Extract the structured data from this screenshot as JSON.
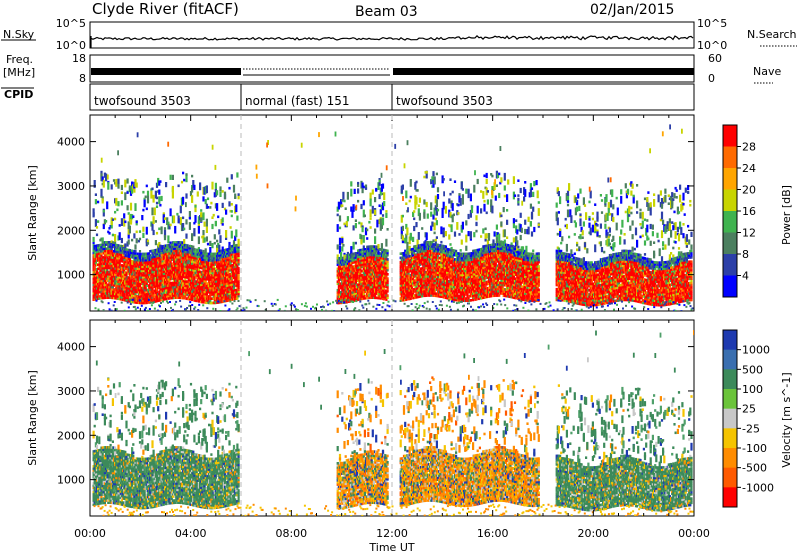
{
  "header": {
    "title": "Clyde River (fitACF)",
    "beam": "Beam 03",
    "date": "02/Jan/2015"
  },
  "strips": {
    "nsky": {
      "label": "N.Sky",
      "ticks": [
        "10^5",
        "10^0"
      ]
    },
    "nsearch": {
      "label": "N.Search",
      "ticks": [
        "10^5",
        "10^0"
      ]
    },
    "freq": {
      "label_line1": "Freq.",
      "label_line2": "[MHz]",
      "ticks": [
        "18",
        "8"
      ]
    },
    "nave": {
      "label": "Nave",
      "ticks": [
        "60",
        "0"
      ]
    },
    "cpid": {
      "label": "CPID",
      "segments": [
        {
          "name": "twofsound 3503",
          "start_hour": 0,
          "end_hour": 6
        },
        {
          "name": "normal (fast) 151",
          "start_hour": 6,
          "end_hour": 12
        },
        {
          "name": "twofsound 3503",
          "start_hour": 12,
          "end_hour": 24
        }
      ]
    }
  },
  "axes": {
    "ylabel": "Slant Range [km]",
    "xlabel": "Time UT",
    "x_ticks": [
      "00:00",
      "04:00",
      "08:00",
      "12:00",
      "16:00",
      "20:00",
      "00:00"
    ],
    "y_ticks": [
      "1000",
      "2000",
      "3000",
      "4000"
    ]
  },
  "chart_data": [
    {
      "type": "heatmap",
      "panel": "power",
      "xlabel": "Time UT",
      "ylabel": "Slant Range [km]",
      "xlim": [
        0,
        24
      ],
      "ylim": [
        180,
        4600
      ],
      "colorbar": {
        "label": "Power [dB]",
        "ticks": [
          "28",
          "24",
          "20",
          "16",
          "12",
          "8",
          "4"
        ],
        "colors": [
          "#ff0000",
          "#ff6a00",
          "#ffa500",
          "#c8d400",
          "#3fb34f",
          "#4b7f5f",
          "#2c3fa8",
          "#0000ff"
        ]
      },
      "scatter_regions": [
        {
          "t_start": 0.1,
          "t_end": 5.9,
          "r_min": 450,
          "r_max": 1900,
          "dominant": "red"
        },
        {
          "t_start": 9.8,
          "t_end": 11.8,
          "r_min": 450,
          "r_max": 1800,
          "dominant": "red"
        },
        {
          "t_start": 12.3,
          "t_end": 17.8,
          "r_min": 500,
          "r_max": 1900,
          "dominant": "red"
        },
        {
          "t_start": 18.5,
          "t_end": 23.9,
          "r_min": 400,
          "r_max": 1700,
          "dominant": "red"
        }
      ]
    },
    {
      "type": "heatmap",
      "panel": "velocity",
      "xlabel": "Time UT",
      "ylabel": "Slant Range [km]",
      "xlim": [
        0,
        24
      ],
      "ylim": [
        180,
        4600
      ],
      "colorbar": {
        "label": "Velocity [m s^-1]",
        "ticks": [
          "1000",
          "500",
          "100",
          "25",
          "-25",
          "-100",
          "-500",
          "-1000"
        ],
        "colors": [
          "#1e3ab0",
          "#3a6fb0",
          "#3c8a5a",
          "#6bc43a",
          "#c8c8c8",
          "#f5c400",
          "#ff8c00",
          "#ff5a00",
          "#ff0000"
        ]
      },
      "scatter_regions": [
        {
          "t_start": 0.1,
          "t_end": 5.9,
          "r_min": 450,
          "r_max": 1900,
          "dominant": "green"
        },
        {
          "t_start": 9.8,
          "t_end": 11.8,
          "r_min": 450,
          "r_max": 1800,
          "dominant": "orange"
        },
        {
          "t_start": 12.3,
          "t_end": 17.8,
          "r_min": 500,
          "r_max": 1900,
          "dominant": "orange"
        },
        {
          "t_start": 18.5,
          "t_end": 23.9,
          "r_min": 400,
          "r_max": 1700,
          "dominant": "green"
        }
      ]
    }
  ]
}
